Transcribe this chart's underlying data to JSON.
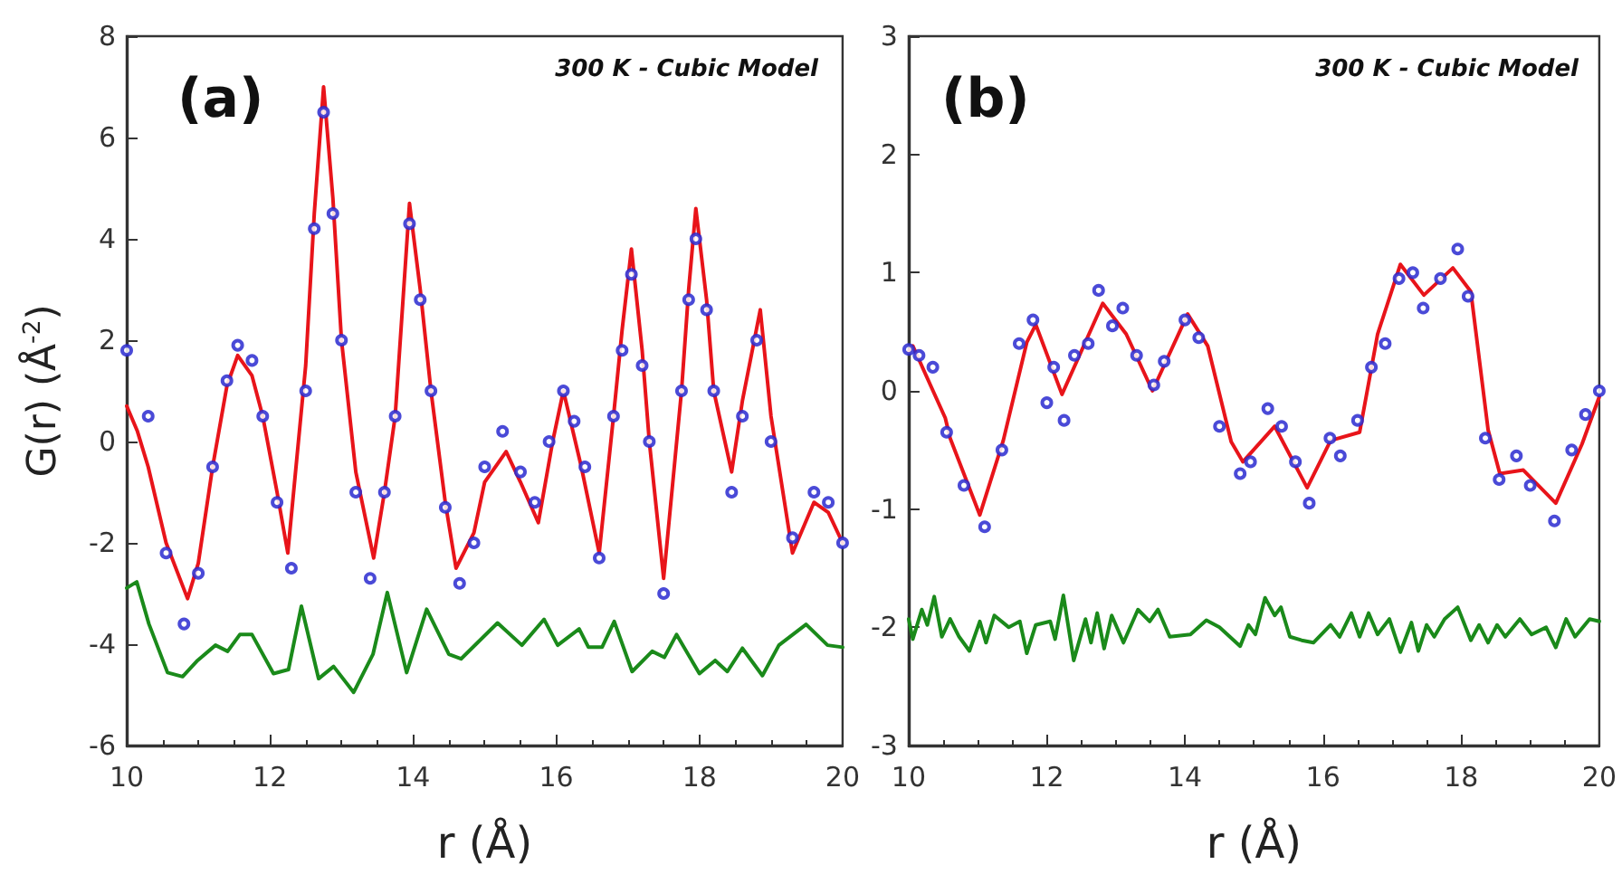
{
  "chart_data": [
    {
      "type": "line",
      "annotations": [
        "(a)",
        "300 K - Cubic Model"
      ],
      "xlabel": "r (Å)",
      "ylabel": "G(r) (Å$^{-2}$)",
      "xlim": [
        10,
        20
      ],
      "xticks": [
        10,
        12,
        14,
        16,
        18,
        20
      ],
      "ylim": [
        -6,
        8
      ],
      "yticks": [
        -6,
        -4,
        -2,
        0,
        2,
        4,
        6,
        8
      ],
      "series": [
        {
          "type": "scatter",
          "marker": "circle",
          "color": "#2a2ad0",
          "x": [
            10,
            10.3,
            10.55,
            10.8,
            11.0,
            11.2,
            11.4,
            11.55,
            11.75,
            11.9,
            12.1,
            12.3,
            12.5,
            12.62,
            12.75,
            12.88,
            13.0,
            13.2,
            13.4,
            13.6,
            13.75,
            13.95,
            14.1,
            14.25,
            14.45,
            14.65,
            14.85,
            15.0,
            15.25,
            15.5,
            15.7,
            15.9,
            16.1,
            16.25,
            16.4,
            16.6,
            16.8,
            16.92,
            17.05,
            17.2,
            17.3,
            17.5,
            17.75,
            17.85,
            17.95,
            18.1,
            18.2,
            18.45,
            18.6,
            18.8,
            19.0,
            19.3,
            19.6,
            19.8,
            20
          ],
          "values": [
            1.8,
            0.5,
            -2.2,
            -3.6,
            -2.6,
            -0.5,
            1.2,
            1.9,
            1.6,
            0.5,
            -1.2,
            -2.5,
            1.0,
            4.2,
            6.5,
            4.5,
            2.0,
            -1.0,
            -2.7,
            -1.0,
            0.5,
            4.3,
            2.8,
            1.0,
            -1.3,
            -2.8,
            -2.0,
            -0.5,
            0.2,
            -0.6,
            -1.2,
            0.0,
            1.0,
            0.4,
            -0.5,
            -2.3,
            0.5,
            1.8,
            3.3,
            1.5,
            0.0,
            -3.0,
            1.0,
            2.8,
            4.0,
            2.6,
            1.0,
            -1.0,
            0.5,
            2.0,
            0.0,
            -1.9,
            -1.0,
            -1.2,
            -2.0
          ]
        },
        {
          "marker": "none",
          "color": "#e8141a",
          "x": [
            10,
            10.15,
            10.3,
            10.55,
            10.85,
            11.0,
            11.2,
            11.4,
            11.55,
            11.75,
            11.9,
            12.1,
            12.25,
            12.5,
            12.62,
            12.75,
            12.88,
            13.0,
            13.2,
            13.45,
            13.6,
            13.75,
            13.95,
            14.1,
            14.25,
            14.45,
            14.6,
            14.85,
            15.0,
            15.3,
            15.5,
            15.75,
            15.95,
            16.1,
            16.35,
            16.6,
            16.8,
            16.92,
            17.05,
            17.2,
            17.3,
            17.5,
            17.75,
            17.85,
            17.95,
            18.1,
            18.2,
            18.45,
            18.6,
            18.85,
            19.0,
            19.3,
            19.6,
            19.8,
            20
          ],
          "values": [
            0.7,
            0.2,
            -0.5,
            -2.0,
            -3.1,
            -2.4,
            -0.5,
            1.1,
            1.7,
            1.3,
            0.5,
            -1.0,
            -2.2,
            1.5,
            4.5,
            7.0,
            4.8,
            2.0,
            -0.6,
            -2.3,
            -1.0,
            0.5,
            4.7,
            3.0,
            1.0,
            -1.2,
            -2.5,
            -1.8,
            -0.8,
            -0.2,
            -0.8,
            -1.6,
            0.0,
            1.0,
            -0.5,
            -2.2,
            0.5,
            2.2,
            3.8,
            1.8,
            0.0,
            -2.7,
            1.0,
            3.0,
            4.6,
            2.8,
            1.0,
            -0.6,
            0.8,
            2.6,
            0.5,
            -2.2,
            -1.2,
            -1.4,
            -2.0
          ]
        },
        {
          "marker": "none",
          "color": "#1a8a1a",
          "x": [
            10,
            10.14,
            10.31,
            10.57,
            10.78,
            10.99,
            11.24,
            11.41,
            11.58,
            11.75,
            12.05,
            12.26,
            12.44,
            12.68,
            12.89,
            13.17,
            13.44,
            13.64,
            13.91,
            14.19,
            14.5,
            14.67,
            15.18,
            15.52,
            15.83,
            16.02,
            16.32,
            16.45,
            16.64,
            16.81,
            17.06,
            17.34,
            17.51,
            17.68,
            18.0,
            18.22,
            18.39,
            18.6,
            18.88,
            19.11,
            19.49,
            19.79,
            20
          ],
          "values": [
            -2.89,
            -2.77,
            -3.6,
            -4.56,
            -4.64,
            -4.32,
            -4.02,
            -4.14,
            -3.81,
            -3.81,
            -4.58,
            -4.5,
            -3.25,
            -4.68,
            -4.44,
            -4.95,
            -4.2,
            -2.98,
            -4.56,
            -3.31,
            -4.2,
            -4.29,
            -3.58,
            -4.02,
            -3.51,
            -4.02,
            -3.7,
            -4.06,
            -4.06,
            -3.55,
            -4.54,
            -4.14,
            -4.26,
            -3.81,
            -4.58,
            -4.32,
            -4.54,
            -4.08,
            -4.62,
            -4.02,
            -3.61,
            -4.02,
            -4.06
          ]
        }
      ]
    },
    {
      "type": "line",
      "annotations": [
        "(b)",
        "300 K - Cubic Model"
      ],
      "xlabel": "r (Å)",
      "xlim": [
        10,
        20
      ],
      "xticks": [
        10,
        12,
        14,
        16,
        18,
        20
      ],
      "ylim": [
        -3,
        3
      ],
      "yticks": [
        -3,
        -2,
        -1,
        0,
        1,
        2,
        3
      ],
      "series": [
        {
          "type": "scatter",
          "marker": "circle",
          "color": "#2a2ad0",
          "x": [
            10,
            10.15,
            10.35,
            10.55,
            10.8,
            11.1,
            11.35,
            11.6,
            11.8,
            12.0,
            12.1,
            12.25,
            12.4,
            12.6,
            12.75,
            12.95,
            13.1,
            13.3,
            13.55,
            13.7,
            14.0,
            14.2,
            14.5,
            14.8,
            14.95,
            15.2,
            15.4,
            15.6,
            15.8,
            16.1,
            16.25,
            16.5,
            16.7,
            16.9,
            17.1,
            17.3,
            17.45,
            17.7,
            17.95,
            18.1,
            18.35,
            18.55,
            18.8,
            19.0,
            19.35,
            19.6,
            19.8,
            20
          ],
          "values": [
            0.35,
            0.3,
            0.2,
            -0.35,
            -0.8,
            -1.15,
            -0.5,
            0.4,
            0.6,
            -0.1,
            0.2,
            -0.25,
            0.3,
            0.4,
            0.85,
            0.55,
            0.7,
            0.3,
            0.05,
            0.25,
            0.6,
            0.45,
            -0.3,
            -0.7,
            -0.6,
            -0.15,
            -0.3,
            -0.6,
            -0.95,
            -0.4,
            -0.55,
            -0.25,
            0.2,
            0.4,
            0.95,
            1.0,
            0.7,
            0.95,
            1.2,
            0.8,
            -0.4,
            -0.75,
            -0.55,
            -0.8,
            -1.1,
            -0.5,
            -0.2,
            0.0
          ]
        },
        {
          "marker": "none",
          "color": "#e8141a",
          "x": [
            10,
            10.06,
            10.53,
            10.6,
            11.03,
            11.37,
            11.71,
            11.84,
            12.22,
            12.81,
            13.15,
            13.53,
            14.04,
            14.33,
            14.67,
            14.84,
            15.3,
            15.77,
            16.11,
            16.53,
            16.79,
            17.12,
            17.46,
            17.88,
            18.14,
            18.39,
            18.56,
            18.9,
            19.37,
            19.75,
            20
          ],
          "values": [
            0.33,
            0.38,
            -0.23,
            -0.4,
            -1.05,
            -0.42,
            0.41,
            0.56,
            -0.03,
            0.74,
            0.48,
            0.0,
            0.65,
            0.38,
            -0.43,
            -0.6,
            -0.3,
            -0.82,
            -0.42,
            -0.35,
            0.48,
            1.07,
            0.81,
            1.04,
            0.84,
            -0.33,
            -0.7,
            -0.67,
            -0.95,
            -0.45,
            -0.05
          ]
        },
        {
          "marker": "none",
          "color": "#1a8a1a",
          "x": [
            10,
            10.06,
            10.19,
            10.27,
            10.37,
            10.48,
            10.6,
            10.73,
            10.88,
            11.03,
            11.12,
            11.24,
            11.45,
            11.61,
            11.71,
            11.84,
            12.05,
            12.12,
            12.24,
            12.39,
            12.56,
            12.64,
            12.73,
            12.83,
            12.94,
            13.11,
            13.32,
            13.49,
            13.61,
            13.78,
            14.08,
            14.31,
            14.5,
            14.8,
            14.92,
            15.02,
            15.16,
            15.3,
            15.39,
            15.52,
            15.69,
            15.86,
            16.11,
            16.24,
            16.41,
            16.53,
            16.66,
            16.79,
            16.96,
            17.12,
            17.28,
            17.38,
            17.5,
            17.61,
            17.76,
            17.95,
            18.14,
            18.26,
            18.39,
            18.52,
            18.64,
            18.85,
            19.02,
            19.23,
            19.37,
            19.52,
            19.65,
            19.86,
            20
          ],
          "values": [
            -1.93,
            -2.1,
            -1.85,
            -1.98,
            -1.74,
            -2.08,
            -1.93,
            -2.08,
            -2.2,
            -1.95,
            -2.13,
            -1.9,
            -2.0,
            -1.95,
            -2.22,
            -1.98,
            -1.95,
            -2.1,
            -1.73,
            -2.28,
            -1.93,
            -2.13,
            -1.88,
            -2.18,
            -1.9,
            -2.13,
            -1.85,
            -1.95,
            -1.85,
            -2.08,
            -2.06,
            -1.94,
            -2.0,
            -2.16,
            -1.98,
            -2.06,
            -1.75,
            -1.9,
            -1.83,
            -2.08,
            -2.11,
            -2.13,
            -1.98,
            -2.08,
            -1.88,
            -2.08,
            -1.88,
            -2.06,
            -1.93,
            -2.21,
            -1.96,
            -2.2,
            -1.98,
            -2.08,
            -1.93,
            -1.83,
            -2.11,
            -1.98,
            -2.13,
            -1.98,
            -2.08,
            -1.93,
            -2.06,
            -2.0,
            -2.17,
            -1.93,
            -2.08,
            -1.93,
            -1.95
          ]
        }
      ]
    }
  ]
}
